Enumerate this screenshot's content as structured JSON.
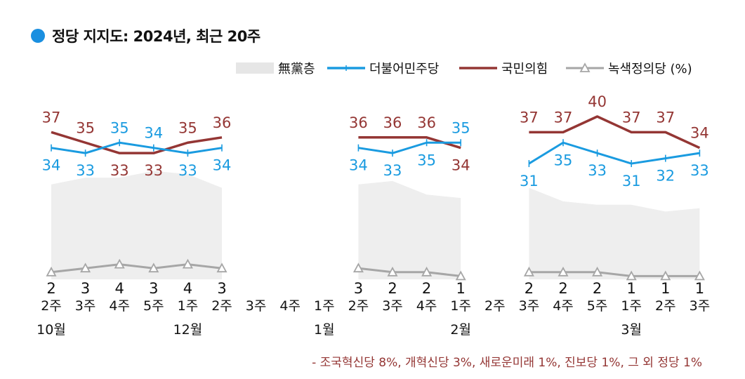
{
  "chart_data": {
    "type": "line",
    "title": "정당 지지도: 2024년, 최근 20주",
    "unit_label": "(%)",
    "colors": {
      "title_dot": "#1a8fe0",
      "undecided": "#eeeeee",
      "legend_undecided": "#e6e6e6",
      "dp": "#1a9be0",
      "ppp": "#943634",
      "green": "#a6a6a6",
      "footnote": "#943634"
    },
    "x_weeks": [
      "2주",
      "3주",
      "4주",
      "5주",
      "1주",
      "2주",
      "3주",
      "4주",
      "1주",
      "2주",
      "3주",
      "4주",
      "1주",
      "2주",
      "3주",
      "4주",
      "5주",
      "1주",
      "2주",
      "3주"
    ],
    "months": [
      {
        "label": "10월",
        "index": 0
      },
      {
        "label": "12월",
        "index": 4
      },
      {
        "label": "1월",
        "index": 8
      },
      {
        "label": "2월",
        "index": 12
      },
      {
        "label": "3월",
        "index": 17
      }
    ],
    "series": [
      {
        "key": "undecided",
        "name": "無黨층",
        "kind": "area",
        "values": [
          28,
          30,
          30,
          32,
          31,
          27,
          null,
          null,
          null,
          28,
          29,
          25,
          24,
          null,
          27,
          23,
          22,
          22,
          20,
          21
        ]
      },
      {
        "key": "dp",
        "name": "더불어민주당",
        "kind": "line",
        "values": [
          34,
          33,
          35,
          34,
          33,
          34,
          null,
          null,
          null,
          34,
          33,
          35,
          35,
          null,
          31,
          35,
          33,
          31,
          32,
          33
        ]
      },
      {
        "key": "ppp",
        "name": "국민의힘",
        "kind": "line",
        "values": [
          37,
          35,
          33,
          33,
          35,
          36,
          null,
          null,
          null,
          36,
          36,
          36,
          34,
          null,
          37,
          37,
          40,
          37,
          37,
          34
        ]
      },
      {
        "key": "green",
        "name": "녹색정의당",
        "kind": "line-triangle",
        "values": [
          2,
          3,
          4,
          3,
          4,
          3,
          null,
          null,
          null,
          3,
          2,
          2,
          1,
          null,
          2,
          2,
          2,
          1,
          1,
          1
        ]
      }
    ],
    "footnote": "- 조국혁신당 8%, 개혁신당 3%, 새로운미래 1%, 진보당 1%, 그 외 정당 1%",
    "grid": false,
    "legend_position": "top-right"
  }
}
